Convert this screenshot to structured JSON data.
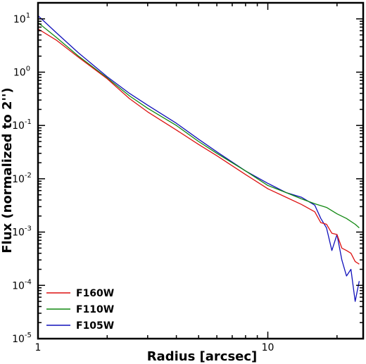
{
  "chart_data": {
    "type": "line",
    "title": "",
    "xlabel": "Radius [arcsec]",
    "ylabel": "Flux (normalized to 2'')",
    "xscale": "log",
    "yscale": "log",
    "xlim": [
      1,
      26
    ],
    "ylim": [
      1e-05,
      20
    ],
    "grid": false,
    "legend_position": "lower-left",
    "x_ticks": [
      {
        "value": 1,
        "label": "1"
      },
      {
        "value": 10,
        "label": "10"
      }
    ],
    "y_ticks": [
      {
        "value": 1e-05,
        "base": "10",
        "exp": "-5"
      },
      {
        "value": 0.0001,
        "base": "10",
        "exp": "-4"
      },
      {
        "value": 0.001,
        "base": "10",
        "exp": "-3"
      },
      {
        "value": 0.01,
        "base": "10",
        "exp": "-2"
      },
      {
        "value": 0.1,
        "base": "10",
        "exp": "-1"
      },
      {
        "value": 1,
        "base": "10",
        "exp": "0"
      },
      {
        "value": 10,
        "base": "10",
        "exp": "1"
      }
    ],
    "series": [
      {
        "name": "F160W",
        "color": "#dd1111",
        "x": [
          1.0,
          1.2,
          1.5,
          2.0,
          2.5,
          3.0,
          4.0,
          5.0,
          6.0,
          8.0,
          10.0,
          12.0,
          14.0,
          16.0,
          17.0,
          18.0,
          19.0,
          20.0,
          21.0,
          22.0,
          23.0,
          24.0,
          25.0
        ],
        "y": [
          6.5,
          4.0,
          1.9,
          0.75,
          0.32,
          0.18,
          0.082,
          0.044,
          0.027,
          0.012,
          0.0065,
          0.0045,
          0.0033,
          0.0024,
          0.0015,
          0.0014,
          0.00095,
          0.0009,
          0.0005,
          0.00045,
          0.0004,
          0.00028,
          0.00025
        ]
      },
      {
        "name": "F110W",
        "color": "#118811",
        "x": [
          1.0,
          1.2,
          1.5,
          2.0,
          2.5,
          3.0,
          4.0,
          5.0,
          6.0,
          8.0,
          10.0,
          12.0,
          14.0,
          16.0,
          18.0,
          20.0,
          22.0,
          24.0,
          25.0
        ],
        "y": [
          8.5,
          4.5,
          2.0,
          0.78,
          0.36,
          0.21,
          0.1,
          0.05,
          0.03,
          0.014,
          0.0075,
          0.0055,
          0.0042,
          0.0034,
          0.0029,
          0.0022,
          0.0018,
          0.0014,
          0.0012
        ]
      },
      {
        "name": "F105W",
        "color": "#1111bb",
        "x": [
          1.0,
          1.2,
          1.5,
          2.0,
          2.5,
          3.0,
          4.0,
          5.0,
          6.0,
          8.0,
          10.0,
          12.0,
          14.0,
          16.0,
          17.0,
          18.0,
          19.0,
          20.0,
          21.0,
          22.0,
          23.0,
          24.0,
          25.0
        ],
        "y": [
          11.5,
          5.5,
          2.3,
          0.82,
          0.4,
          0.24,
          0.11,
          0.055,
          0.032,
          0.014,
          0.0082,
          0.0055,
          0.0045,
          0.0032,
          0.0018,
          0.0012,
          0.00045,
          0.0009,
          0.0003,
          0.00015,
          0.0002,
          5e-05,
          0.00012
        ]
      }
    ]
  }
}
